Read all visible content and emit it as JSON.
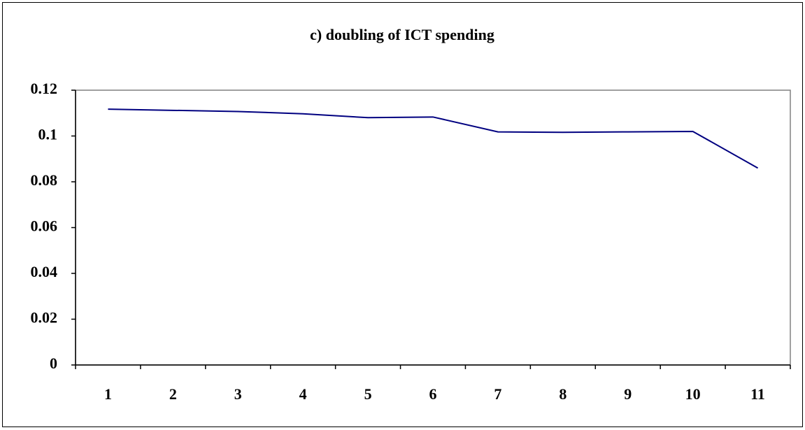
{
  "chart_data": {
    "type": "line",
    "title": "c) doubling of ICT spending",
    "categories": [
      "1",
      "2",
      "3",
      "4",
      "5",
      "6",
      "7",
      "8",
      "9",
      "10",
      "11"
    ],
    "series": [
      {
        "name": "",
        "color": "#000080",
        "values": [
          0.1117,
          0.1112,
          0.1107,
          0.1097,
          0.108,
          0.1083,
          0.1018,
          0.1016,
          0.1018,
          0.102,
          0.086
        ]
      }
    ],
    "ylim": [
      0,
      0.12
    ],
    "yticks": [
      0,
      0.02,
      0.04,
      0.06,
      0.08,
      0.1,
      0.12
    ]
  }
}
